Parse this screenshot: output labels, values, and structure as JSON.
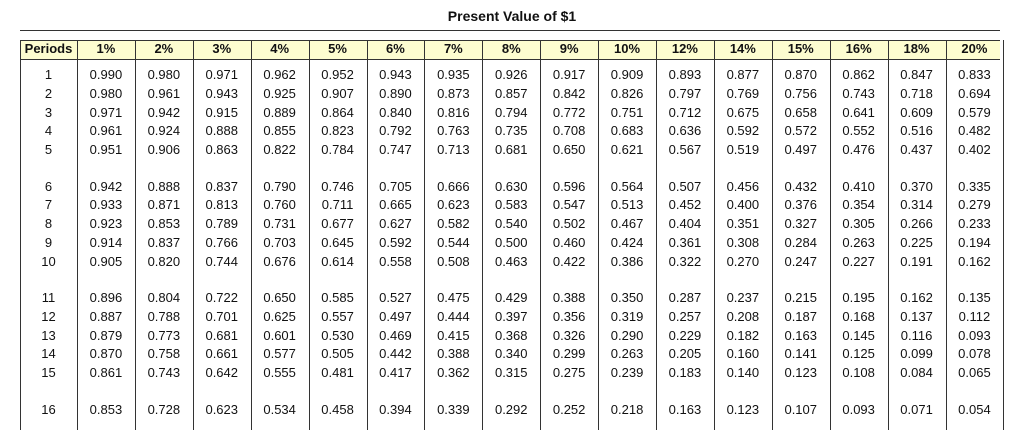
{
  "header": {
    "title": "Present Value of $1"
  },
  "table": {
    "columns": [
      "Periods",
      "1%",
      "2%",
      "3%",
      "4%",
      "5%",
      "6%",
      "7%",
      "8%",
      "9%",
      "10%",
      "12%",
      "14%",
      "15%",
      "16%",
      "18%",
      "20%"
    ],
    "rows": [
      [
        1,
        "0.990",
        "0.980",
        "0.971",
        "0.962",
        "0.952",
        "0.943",
        "0.935",
        "0.926",
        "0.917",
        "0.909",
        "0.893",
        "0.877",
        "0.870",
        "0.862",
        "0.847",
        "0.833"
      ],
      [
        2,
        "0.980",
        "0.961",
        "0.943",
        "0.925",
        "0.907",
        "0.890",
        "0.873",
        "0.857",
        "0.842",
        "0.826",
        "0.797",
        "0.769",
        "0.756",
        "0.743",
        "0.718",
        "0.694"
      ],
      [
        3,
        "0.971",
        "0.942",
        "0.915",
        "0.889",
        "0.864",
        "0.840",
        "0.816",
        "0.794",
        "0.772",
        "0.751",
        "0.712",
        "0.675",
        "0.658",
        "0.641",
        "0.609",
        "0.579"
      ],
      [
        4,
        "0.961",
        "0.924",
        "0.888",
        "0.855",
        "0.823",
        "0.792",
        "0.763",
        "0.735",
        "0.708",
        "0.683",
        "0.636",
        "0.592",
        "0.572",
        "0.552",
        "0.516",
        "0.482"
      ],
      [
        5,
        "0.951",
        "0.906",
        "0.863",
        "0.822",
        "0.784",
        "0.747",
        "0.713",
        "0.681",
        "0.650",
        "0.621",
        "0.567",
        "0.519",
        "0.497",
        "0.476",
        "0.437",
        "0.402"
      ],
      [
        6,
        "0.942",
        "0.888",
        "0.837",
        "0.790",
        "0.746",
        "0.705",
        "0.666",
        "0.630",
        "0.596",
        "0.564",
        "0.507",
        "0.456",
        "0.432",
        "0.410",
        "0.370",
        "0.335"
      ],
      [
        7,
        "0.933",
        "0.871",
        "0.813",
        "0.760",
        "0.711",
        "0.665",
        "0.623",
        "0.583",
        "0.547",
        "0.513",
        "0.452",
        "0.400",
        "0.376",
        "0.354",
        "0.314",
        "0.279"
      ],
      [
        8,
        "0.923",
        "0.853",
        "0.789",
        "0.731",
        "0.677",
        "0.627",
        "0.582",
        "0.540",
        "0.502",
        "0.467",
        "0.404",
        "0.351",
        "0.327",
        "0.305",
        "0.266",
        "0.233"
      ],
      [
        9,
        "0.914",
        "0.837",
        "0.766",
        "0.703",
        "0.645",
        "0.592",
        "0.544",
        "0.500",
        "0.460",
        "0.424",
        "0.361",
        "0.308",
        "0.284",
        "0.263",
        "0.225",
        "0.194"
      ],
      [
        10,
        "0.905",
        "0.820",
        "0.744",
        "0.676",
        "0.614",
        "0.558",
        "0.508",
        "0.463",
        "0.422",
        "0.386",
        "0.322",
        "0.270",
        "0.247",
        "0.227",
        "0.191",
        "0.162"
      ],
      [
        11,
        "0.896",
        "0.804",
        "0.722",
        "0.650",
        "0.585",
        "0.527",
        "0.475",
        "0.429",
        "0.388",
        "0.350",
        "0.287",
        "0.237",
        "0.215",
        "0.195",
        "0.162",
        "0.135"
      ],
      [
        12,
        "0.887",
        "0.788",
        "0.701",
        "0.625",
        "0.557",
        "0.497",
        "0.444",
        "0.397",
        "0.356",
        "0.319",
        "0.257",
        "0.208",
        "0.187",
        "0.168",
        "0.137",
        "0.112"
      ],
      [
        13,
        "0.879",
        "0.773",
        "0.681",
        "0.601",
        "0.530",
        "0.469",
        "0.415",
        "0.368",
        "0.326",
        "0.290",
        "0.229",
        "0.182",
        "0.163",
        "0.145",
        "0.116",
        "0.093"
      ],
      [
        14,
        "0.870",
        "0.758",
        "0.661",
        "0.577",
        "0.505",
        "0.442",
        "0.388",
        "0.340",
        "0.299",
        "0.263",
        "0.205",
        "0.160",
        "0.141",
        "0.125",
        "0.099",
        "0.078"
      ],
      [
        15,
        "0.861",
        "0.743",
        "0.642",
        "0.555",
        "0.481",
        "0.417",
        "0.362",
        "0.315",
        "0.275",
        "0.239",
        "0.183",
        "0.140",
        "0.123",
        "0.108",
        "0.084",
        "0.065"
      ],
      [
        16,
        "0.853",
        "0.728",
        "0.623",
        "0.534",
        "0.458",
        "0.394",
        "0.339",
        "0.292",
        "0.252",
        "0.218",
        "0.163",
        "0.123",
        "0.107",
        "0.093",
        "0.071",
        "0.054"
      ]
    ]
  }
}
